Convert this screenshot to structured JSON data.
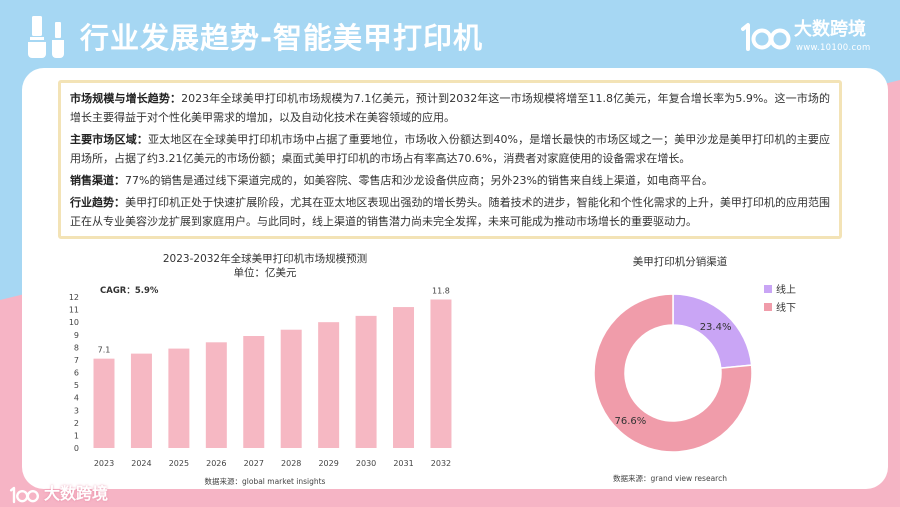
{
  "header": {
    "title": "行业发展趋势-智能美甲打印机",
    "icon": "nail-polish-icon",
    "brand": {
      "logo_mark": "10100",
      "name": "大数跨境",
      "url": "www.10100.com"
    }
  },
  "summary": {
    "paragraphs": [
      {
        "label": "市场规模与增长趋势：",
        "text": "2023年全球美甲打印机市场规模为7.1亿美元，预计到2032年这一市场规模将增至11.8亿美元，年复合增长率为5.9%。这一市场的增长主要得益于对个性化美甲需求的增加，以及自动化技术在美容领域的应用。"
      },
      {
        "label": "主要市场区域：",
        "text": "亚太地区在全球美甲打印机市场中占据了重要地位，市场收入份额达到40%，是增长最快的市场区域之一；美甲沙龙是美甲打印机的主要应用场所，占据了约3.21亿美元的市场份额；桌面式美甲打印机的市场占有率高达70.6%，消费者对家庭使用的设备需求在增长。"
      },
      {
        "label": "销售渠道：",
        "text": "77%的销售是通过线下渠道完成的，如美容院、零售店和沙龙设备供应商；另外23%的销售来自线上渠道，如电商平台。"
      },
      {
        "label": "行业趋势：",
        "text": "美甲打印机正处于快速扩展阶段，尤其在亚太地区表现出强劲的增长势头。随着技术的进步，智能化和个性化需求的上升，美甲打印机的应用范围正在从专业美容沙龙扩展到家庭用户。与此同时，线上渠道的销售潜力尚未完全发挥，未来可能成为推动市场增长的重要驱动力。"
      }
    ]
  },
  "chart_data": [
    {
      "type": "bar",
      "title": "2023-2032年全球美甲打印机市场规模预测",
      "subtitle": "单位：亿美元",
      "categories": [
        "2023",
        "2024",
        "2025",
        "2026",
        "2027",
        "2028",
        "2029",
        "2030",
        "2031",
        "2032"
      ],
      "values": [
        7.1,
        7.5,
        7.9,
        8.4,
        8.9,
        9.4,
        10.0,
        10.5,
        11.2,
        11.8
      ],
      "data_labels": [
        {
          "category": "2023",
          "text": "7.1"
        },
        {
          "category": "2032",
          "text": "11.8"
        }
      ],
      "ylim": [
        0,
        12
      ],
      "yticks": [
        0,
        1,
        2,
        3,
        4,
        5,
        6,
        7,
        8,
        9,
        10,
        11,
        12
      ],
      "grid": false,
      "annotation": "CAGR：5.9%",
      "source": "数据来源：global market insights",
      "color": "#f6b8c3"
    },
    {
      "type": "pie",
      "donut": true,
      "title": "美甲打印机分销渠道",
      "slices": [
        {
          "label": "线上",
          "value": 23.4,
          "display": "23.4%",
          "color": "#c9a5f5"
        },
        {
          "label": "线下",
          "value": 76.6,
          "display": "76.6%",
          "color": "#f09caa"
        }
      ],
      "legend": "right",
      "source": "数据来源：grand view research"
    }
  ],
  "footer": {
    "brand": {
      "logo_mark": "10100",
      "name": "大数跨境"
    }
  },
  "colors": {
    "header_blue": "#a6d7f3",
    "accent_pink": "#f6b4c5",
    "summary_border": "#f3e3b6"
  }
}
